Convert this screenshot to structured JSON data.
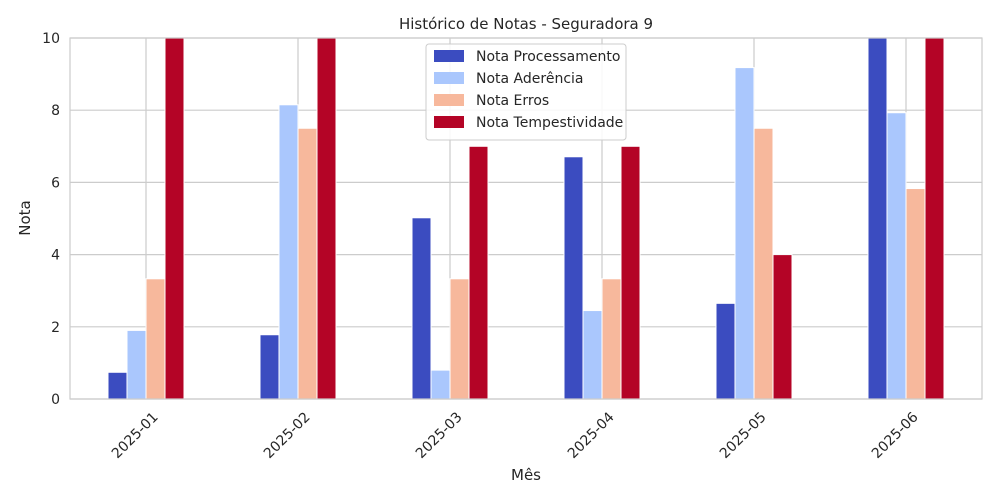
{
  "chart_data": {
    "type": "bar",
    "title": "Histórico de Notas - Seguradora 9",
    "xlabel": "Mês",
    "ylabel": "Nota",
    "categories": [
      "2025-01",
      "2025-02",
      "2025-03",
      "2025-04",
      "2025-05",
      "2025-06"
    ],
    "series": [
      {
        "name": "Nota Processamento",
        "color": "#3b4cc0",
        "values": [
          0.74,
          1.78,
          5.02,
          6.71,
          2.65,
          10.0
        ]
      },
      {
        "name": "Nota Aderência",
        "color": "#aac7fd",
        "values": [
          1.9,
          8.15,
          0.8,
          2.45,
          9.18,
          7.93
        ]
      },
      {
        "name": "Nota Erros",
        "color": "#f7b89c",
        "values": [
          3.33,
          7.5,
          3.33,
          3.33,
          7.5,
          5.83
        ]
      },
      {
        "name": "Nota Tempestividade",
        "color": "#b40426",
        "values": [
          10.0,
          10.0,
          7.0,
          7.0,
          4.0,
          10.0
        ]
      }
    ],
    "ylim": [
      0,
      10
    ],
    "yticks": [
      0,
      2,
      4,
      6,
      8,
      10
    ],
    "grid": true,
    "legend_position": "upper-center"
  }
}
